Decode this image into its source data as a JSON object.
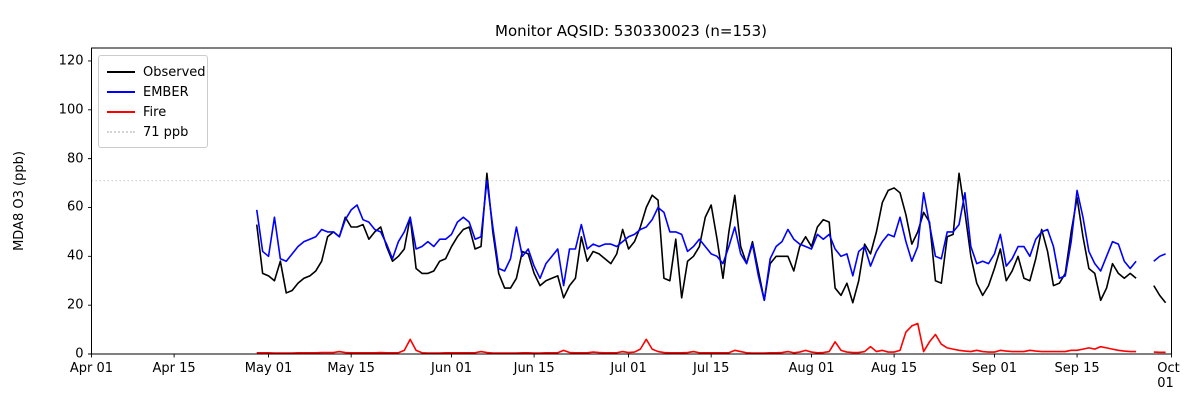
{
  "chart_data": {
    "type": "line",
    "title": "Monitor AQSID: 530330023 (n=153)",
    "xlabel": "",
    "ylabel": "MDA8 O3 (ppb)",
    "ylim": [
      0,
      125.3
    ],
    "y_ticks": [
      0,
      20,
      40,
      60,
      80,
      100,
      120
    ],
    "grid": false,
    "legend_position": "upper-left",
    "x_total_days": 183,
    "x_ticks": [
      {
        "day": 0,
        "label": "Apr 01"
      },
      {
        "day": 14,
        "label": "Apr 15"
      },
      {
        "day": 30,
        "label": "May 01"
      },
      {
        "day": 44,
        "label": "May 15"
      },
      {
        "day": 61,
        "label": "Jun 01"
      },
      {
        "day": 75,
        "label": "Jun 15"
      },
      {
        "day": 91,
        "label": "Jul 01"
      },
      {
        "day": 105,
        "label": "Jul 15"
      },
      {
        "day": 122,
        "label": "Aug 01"
      },
      {
        "day": 136,
        "label": "Aug 15"
      },
      {
        "day": 153,
        "label": "Sep 01"
      },
      {
        "day": 167,
        "label": "Sep 15"
      },
      {
        "day": 183,
        "label": "Oct 01"
      }
    ],
    "start_day": 28,
    "start_date_label": "Apr 29",
    "threshold": {
      "label": "71 ppb",
      "value": 71,
      "color": "#d3d3d3",
      "line_style": "dotted"
    },
    "series": [
      {
        "name": "Observed",
        "color": "#000000",
        "values": [
          53,
          33,
          32,
          30,
          38,
          25,
          26,
          29,
          31,
          32,
          34,
          38,
          48,
          50,
          48,
          56,
          52,
          52,
          53,
          47,
          50,
          52,
          44,
          38,
          40,
          43,
          56,
          35,
          33,
          33,
          34,
          38,
          39,
          44,
          48,
          51,
          52,
          43,
          44,
          74,
          50,
          33,
          27,
          27,
          31,
          42,
          41,
          33,
          28,
          30,
          31,
          32,
          23,
          28,
          31,
          48,
          38,
          42,
          41,
          39,
          37,
          41,
          51,
          43,
          46,
          52,
          60,
          65,
          63,
          31,
          30,
          47,
          23,
          38,
          40,
          44,
          56,
          61,
          47,
          31,
          50,
          65,
          44,
          37,
          46,
          34,
          22,
          37,
          40,
          40,
          40,
          34,
          44,
          48,
          44,
          52,
          55,
          54,
          27,
          24,
          29,
          21,
          30,
          45,
          41,
          50,
          62,
          67,
          68,
          66,
          57,
          45,
          50,
          58,
          54,
          30,
          29,
          48,
          49,
          74,
          58,
          40,
          29,
          24,
          28,
          35,
          43,
          30,
          34,
          40,
          31,
          30,
          39,
          51,
          42,
          28,
          29,
          33,
          50,
          64,
          48,
          35,
          33,
          22,
          27,
          37,
          33,
          31,
          33,
          31,
          null,
          null,
          28,
          24,
          21
        ]
      },
      {
        "name": "EMBER",
        "color": "#0000ff",
        "values": [
          59,
          42,
          40,
          56,
          39,
          38,
          41,
          44,
          46,
          47,
          48,
          51,
          50,
          50,
          48,
          55,
          59,
          61,
          55,
          54,
          51,
          50,
          45,
          39,
          46,
          50,
          56,
          43,
          44,
          46,
          44,
          47,
          47,
          49,
          54,
          56,
          54,
          47,
          48,
          71,
          52,
          35,
          34,
          39,
          52,
          40,
          43,
          36,
          31,
          37,
          40,
          43,
          28,
          43,
          43,
          53,
          43,
          45,
          44,
          45,
          45,
          44,
          46,
          48,
          49,
          51,
          52,
          55,
          60,
          58,
          50,
          50,
          49,
          42,
          44,
          47,
          44,
          41,
          40,
          37,
          44,
          52,
          41,
          37,
          45,
          32,
          22,
          39,
          44,
          46,
          51,
          47,
          45,
          44,
          43,
          49,
          47,
          49,
          43,
          40,
          41,
          32,
          42,
          44,
          36,
          42,
          46,
          49,
          48,
          56,
          46,
          38,
          44,
          66,
          53,
          40,
          39,
          50,
          50,
          53,
          66,
          44,
          37,
          38,
          37,
          41,
          49,
          36,
          39,
          44,
          44,
          40,
          47,
          50,
          51,
          44,
          31,
          32,
          46,
          67,
          56,
          42,
          37,
          34,
          40,
          46,
          45,
          38,
          35,
          38,
          null,
          null,
          38,
          40,
          41
        ]
      },
      {
        "name": "Fire",
        "color": "#ff0000",
        "values": [
          0.5,
          0.5,
          0.5,
          0.4,
          0.4,
          0.4,
          0.4,
          0.5,
          0.5,
          0.5,
          0.5,
          0.6,
          0.6,
          0.6,
          1.0,
          0.6,
          0.5,
          0.5,
          0.5,
          0.5,
          0.5,
          0.6,
          0.5,
          0.5,
          0.5,
          1.5,
          6.0,
          1.5,
          0.5,
          0.4,
          0.4,
          0.4,
          0.5,
          0.5,
          0.5,
          0.5,
          0.5,
          0.5,
          1.0,
          0.6,
          0.4,
          0.4,
          0.4,
          0.4,
          0.4,
          0.5,
          0.5,
          0.4,
          0.4,
          0.5,
          0.5,
          0.5,
          1.5,
          0.6,
          0.5,
          0.5,
          0.5,
          0.8,
          0.6,
          0.5,
          0.5,
          0.5,
          1.0,
          0.6,
          0.8,
          2.0,
          6.0,
          2.0,
          1.0,
          0.6,
          0.5,
          0.5,
          0.5,
          0.6,
          1.0,
          0.5,
          0.5,
          0.5,
          0.5,
          0.5,
          0.5,
          1.5,
          1.0,
          0.5,
          0.4,
          0.4,
          0.4,
          0.5,
          0.5,
          0.6,
          1.0,
          0.5,
          0.8,
          1.5,
          0.8,
          0.5,
          0.6,
          1.0,
          5.0,
          1.5,
          0.8,
          0.6,
          0.6,
          1.0,
          3.0,
          1.0,
          1.5,
          0.8,
          0.8,
          1.5,
          9.0,
          11.5,
          12.5,
          1.0,
          5.0,
          8.0,
          4.0,
          2.5,
          2.0,
          1.5,
          1.2,
          1.0,
          1.5,
          1.0,
          0.8,
          0.8,
          1.5,
          1.2,
          1.0,
          1.0,
          1.0,
          1.5,
          1.2,
          1.0,
          1.0,
          1.0,
          1.0,
          1.0,
          1.5,
          1.5,
          2.0,
          2.5,
          2.0,
          3.0,
          2.5,
          2.0,
          1.5,
          1.2,
          1.0,
          1.0,
          null,
          null,
          0.8,
          0.7,
          0.7
        ]
      }
    ]
  }
}
